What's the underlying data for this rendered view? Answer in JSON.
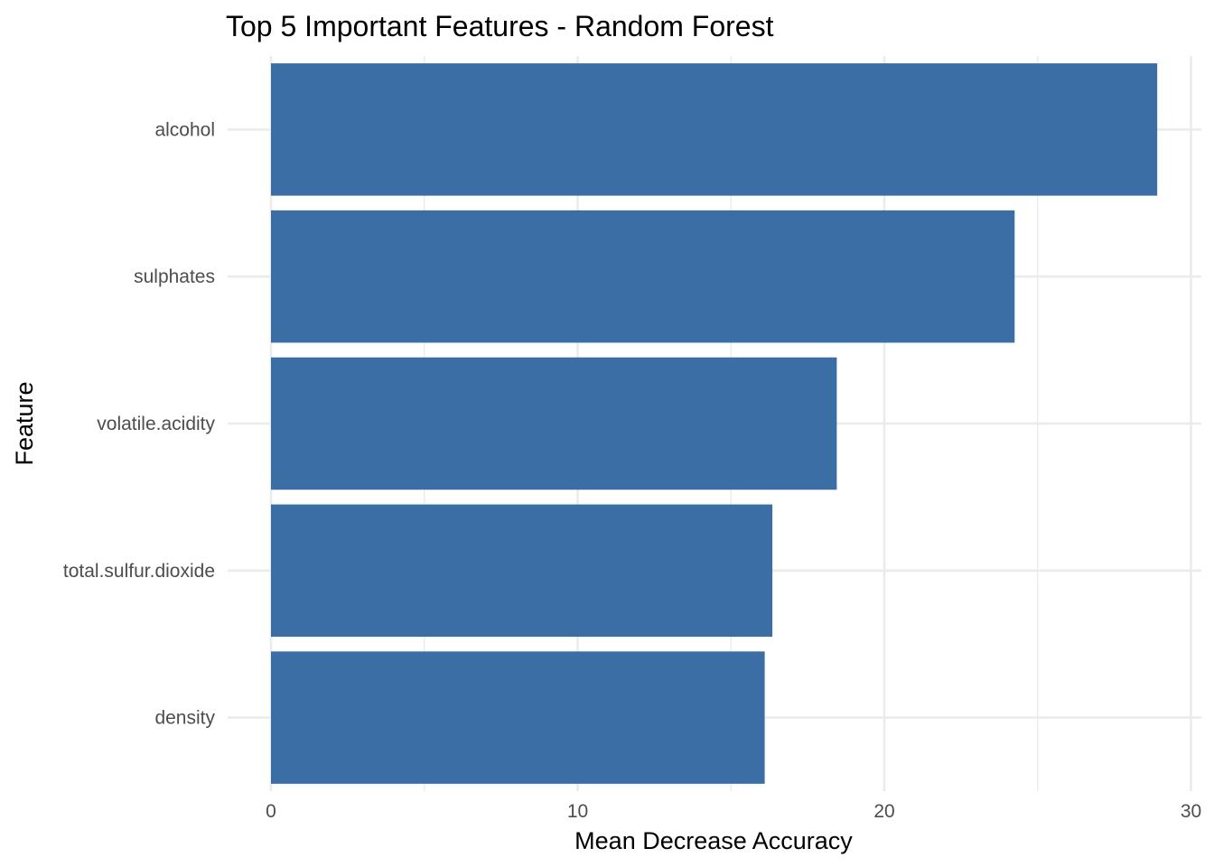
{
  "chart_data": {
    "type": "bar",
    "orientation": "horizontal",
    "title": "Top 5 Important Features - Random Forest",
    "xlabel": "Mean Decrease Accuracy",
    "ylabel": "Feature",
    "categories": [
      "alcohol",
      "sulphates",
      "volatile.acidity",
      "total.sulfur.dioxide",
      "density"
    ],
    "values": [
      28.9,
      24.25,
      18.45,
      16.35,
      16.1
    ],
    "xlim": [
      0,
      30.4
    ],
    "x_ticks": [
      0,
      10,
      20,
      30
    ],
    "x_tick_labels": [
      "0",
      "10",
      "20",
      "30"
    ],
    "x_minor_ticks": [
      5,
      15,
      25
    ],
    "grid": true,
    "legend": "none",
    "bar_color": "#3a6ea5",
    "grid_color": "#ebebeb",
    "text_color": "#4d4d4d"
  }
}
